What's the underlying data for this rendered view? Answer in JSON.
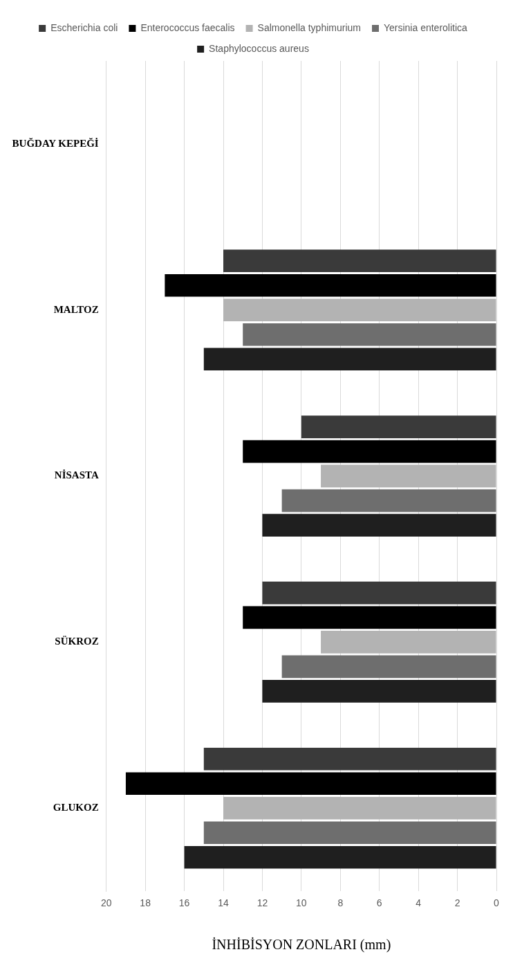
{
  "chart_data": {
    "type": "bar",
    "orientation": "horizontal",
    "xlabel": "İNHİBİSYON ZONLARI (mm)",
    "categories": [
      "BUĞDAY KEPEĞİ",
      "MALTOZ",
      "NİSASTA",
      "SÜKROZ",
      "GLUKOZ"
    ],
    "series": [
      {
        "name": "Escherichia coli",
        "color": "#3a3a3a",
        "values": [
          null,
          14,
          10,
          12,
          15
        ]
      },
      {
        "name": "Enterococcus faecalis",
        "color": "#000000",
        "values": [
          null,
          17,
          13,
          13,
          19
        ]
      },
      {
        "name": "Salmonella typhimurium",
        "color": "#b3b3b3",
        "values": [
          null,
          14,
          9,
          9,
          14
        ]
      },
      {
        "name": "Yersinia enterolitica",
        "color": "#6e6e6e",
        "values": [
          null,
          13,
          11,
          11,
          15
        ]
      },
      {
        "name": "Staphylococcus aureus",
        "color": "#1f1f1f",
        "values": [
          null,
          15,
          12,
          12,
          16
        ]
      }
    ],
    "xlim": [
      20,
      0
    ],
    "xticks": [
      0,
      2,
      4,
      6,
      8,
      10,
      12,
      14,
      16,
      18,
      20
    ],
    "grid": "x",
    "legend": "top"
  }
}
